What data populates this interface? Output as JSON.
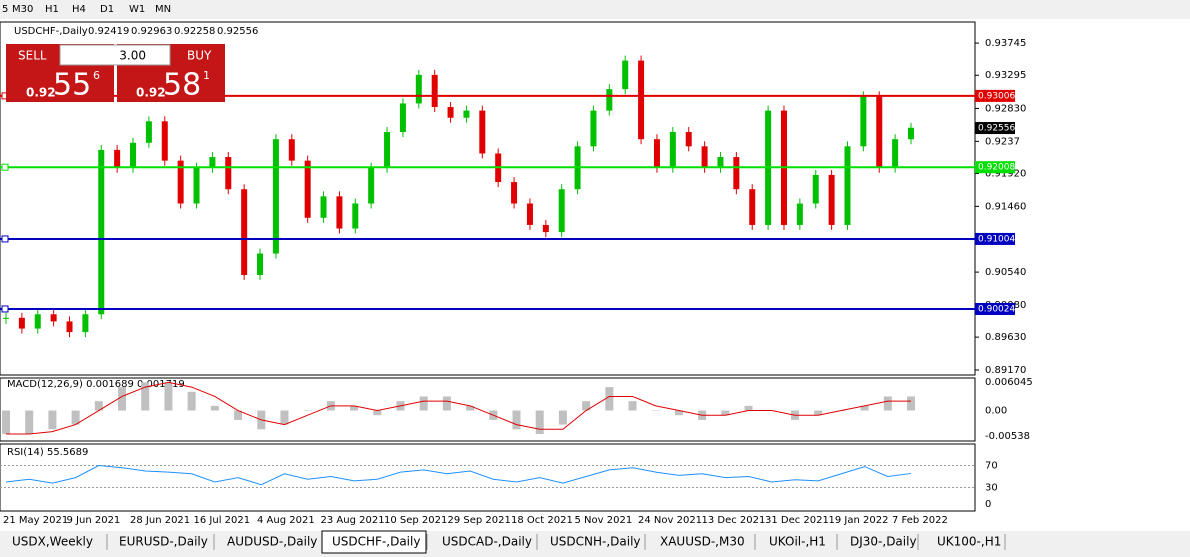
{
  "toolbar": {
    "timeframes": [
      "5",
      "M30",
      "H1",
      "H4",
      "D1",
      "W1",
      "MN"
    ]
  },
  "chart_data": {
    "type": "candlestick",
    "title": "USDCHF-,Daily",
    "ohlc_header": [
      0.92419,
      0.92963,
      0.92258,
      0.92556
    ],
    "closes": [
      0.899,
      0.8975,
      0.8995,
      0.8985,
      0.897,
      0.8995,
      0.9225,
      0.92,
      0.9235,
      0.9265,
      0.921,
      0.915,
      0.92,
      0.9215,
      0.917,
      0.905,
      0.908,
      0.924,
      0.921,
      0.913,
      0.916,
      0.9115,
      0.915,
      0.92,
      0.925,
      0.929,
      0.933,
      0.9285,
      0.927,
      0.928,
      0.922,
      0.918,
      0.915,
      0.912,
      0.911,
      0.917,
      0.923,
      0.928,
      0.931,
      0.935,
      0.924,
      0.92,
      0.925,
      0.923,
      0.92,
      0.9215,
      0.917,
      0.912,
      0.928,
      0.912,
      0.915,
      0.919,
      0.912,
      0.923,
      0.93,
      0.92,
      0.924,
      0.9256
    ],
    "ylim": [
      0.891,
      0.9404
    ],
    "yticks": [
      0.93745,
      0.93295,
      {
        "value": 0.9283,
        "label": "0.92830"
      },
      0.9237,
      {
        "value": 0.9192,
        "label": "0.91920"
      },
      {
        "value": 0.9146,
        "label": "0.91460"
      },
      {
        "value": 0.9054,
        "label": "0.90540"
      },
      {
        "value": 0.9008,
        "label": "0.90080"
      },
      {
        "value": 0.8963,
        "label": "0.89630"
      },
      {
        "value": 0.8917,
        "label": "0.89170"
      }
    ],
    "levels": [
      {
        "value": 0.93006,
        "color": "#e00000"
      },
      {
        "value": 0.92008,
        "color": "#00e000"
      },
      {
        "value": 0.91004,
        "color": "#0000c0"
      },
      {
        "value": 0.90024,
        "color": "#0000c0"
      }
    ],
    "current_price": 0.92556,
    "up_color": "#00c000",
    "down_color": "#e00000",
    "x_labels": [
      "21 May 2021",
      "9 Jun 2021",
      "28 Jun 2021",
      "16 Jul 2021",
      "4 Aug 2021",
      "23 Aug 2021",
      "10 Sep 2021",
      "29 Sep 2021",
      "18 Oct 2021",
      "5 Nov 2021",
      "24 Nov 2021",
      "13 Dec 2021",
      "31 Dec 2021",
      "19 Jan 2022",
      "7 Feb 2022"
    ]
  },
  "trade_panel": {
    "sell": "SELL",
    "buy": "BUY",
    "volume": "3.00",
    "bid": [
      "0.92",
      "55",
      "6"
    ],
    "ask": [
      "0.92",
      "58",
      "1"
    ]
  },
  "macd": {
    "label": "MACD(12,26,9) 0.001689 0.001719",
    "ylim": [
      -0.0065,
      0.00694
    ],
    "yticks": [
      0.006045,
      {
        "value": 0,
        "label": "0.00"
      },
      -0.00538
    ],
    "histogram": [
      -0.005,
      -0.005,
      -0.004,
      -0.003,
      0.002,
      0.005,
      0.006,
      0.006,
      0.004,
      0.001,
      -0.002,
      -0.004,
      -0.003,
      0.0,
      0.002,
      0.001,
      -0.001,
      0.002,
      0.003,
      0.003,
      0.001,
      -0.002,
      -0.004,
      -0.005,
      -0.003,
      0.002,
      0.005,
      0.002,
      0.0,
      -0.001,
      -0.002,
      -0.001,
      0.001,
      0.0,
      -0.002,
      -0.001,
      0.0,
      0.001,
      0.003,
      0.003
    ],
    "signal": [
      -0.005,
      -0.005,
      -0.0045,
      -0.003,
      0.0,
      0.003,
      0.005,
      0.006,
      0.005,
      0.003,
      0.0,
      -0.002,
      -0.003,
      -0.001,
      0.001,
      0.001,
      0.0,
      0.001,
      0.002,
      0.002,
      0.001,
      -0.001,
      -0.003,
      -0.004,
      -0.004,
      0.0,
      0.003,
      0.003,
      0.001,
      0.0,
      -0.001,
      -0.001,
      0.0,
      0.0,
      -0.001,
      -0.001,
      0.0,
      0.001,
      0.002,
      0.002
    ]
  },
  "rsi": {
    "label": "RSI(14) 55.5689",
    "ylim": [
      0,
      100
    ],
    "yticks": [
      70,
      30,
      0
    ],
    "values": [
      40,
      45,
      38,
      48,
      70,
      66,
      60,
      58,
      55,
      40,
      48,
      35,
      55,
      45,
      50,
      42,
      45,
      58,
      62,
      55,
      60,
      45,
      40,
      48,
      38,
      50,
      62,
      66,
      58,
      52,
      55,
      48,
      50,
      40,
      44,
      42,
      55,
      68,
      50,
      55.5689
    ]
  },
  "tabs": [
    "USDX,Weekly",
    "EURUSD-,Daily",
    "AUDUSD-,Daily",
    "USDCHF-,Daily",
    "USDCAD-,Daily",
    "USDCNH-,Daily",
    "XAUUSD-,M30",
    "UKOil-,H1",
    "DJ30-,Daily",
    "UK100-,H1"
  ]
}
